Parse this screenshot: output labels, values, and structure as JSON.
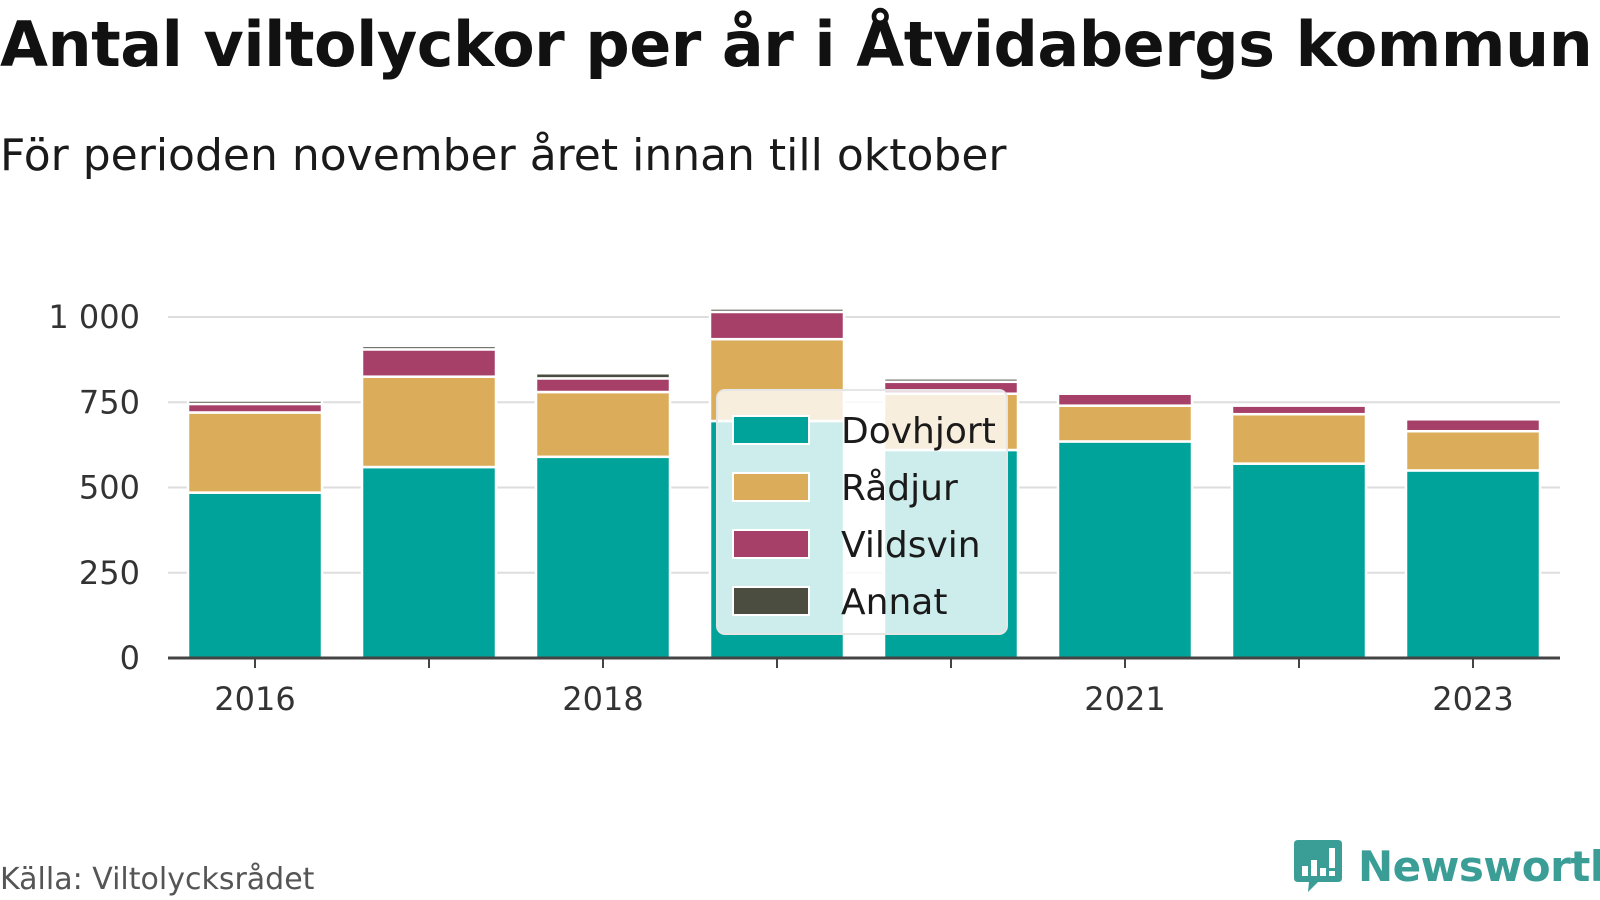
{
  "chart_data": {
    "type": "bar",
    "stacked": true,
    "title": "Antal viltolyckor per år i Åtvidabergs kommun",
    "subtitle": "För perioden november året innan till oktober",
    "xlabel": "",
    "ylabel": "",
    "categories": [
      "2016",
      "2017",
      "2018",
      "2019",
      "2020",
      "2021",
      "2022",
      "2023"
    ],
    "x_tick_labels": [
      "2016",
      "",
      "2018",
      "",
      "",
      "2021",
      "",
      "2023"
    ],
    "y_ticks": [
      0,
      250,
      500,
      750,
      1000
    ],
    "y_tick_labels": [
      "0",
      "250",
      "500",
      "750",
      "1 000"
    ],
    "ylim": [
      0,
      1040
    ],
    "grid": true,
    "legend_placement": "center",
    "series": [
      {
        "name": "Dovhjort",
        "color": "#00a39a",
        "values": [
          485,
          560,
          590,
          695,
          610,
          635,
          570,
          550
        ]
      },
      {
        "name": "Rådjur",
        "color": "#dbac5a",
        "values": [
          235,
          265,
          190,
          240,
          165,
          105,
          145,
          115
        ]
      },
      {
        "name": "Vildsvin",
        "color": "#a64068",
        "values": [
          25,
          80,
          40,
          80,
          35,
          35,
          25,
          35
        ]
      },
      {
        "name": "Annat",
        "color": "#4a4d40",
        "values": [
          10,
          10,
          15,
          10,
          10,
          0,
          0,
          0
        ]
      }
    ]
  },
  "footer": {
    "source": "Källa: Viltolycksrådet",
    "brand": "Newsworthy"
  }
}
